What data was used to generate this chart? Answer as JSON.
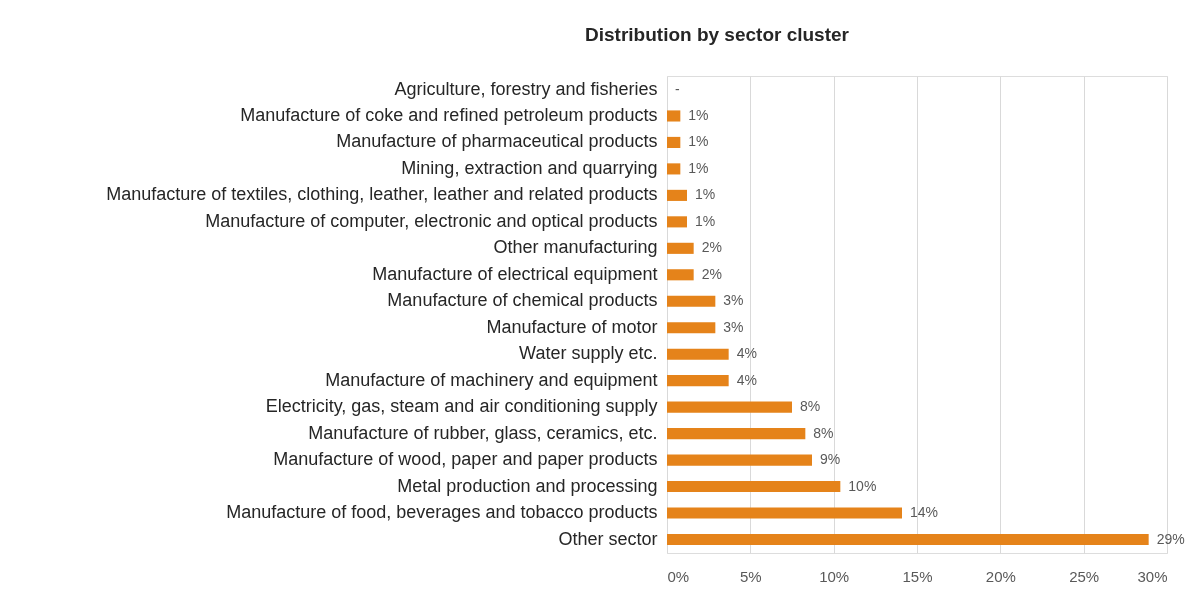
{
  "chart_data": {
    "type": "bar",
    "orientation": "horizontal",
    "title": "Distribution by sector cluster",
    "categories": [
      "Agriculture, forestry and fisheries",
      "Manufacture of coke and refined petroleum products",
      "Manufacture of pharmaceutical products",
      "Mining, extraction and quarrying",
      "Manufacture of textiles, clothing, leather, leather and related products",
      "Manufacture of computer, electronic and optical products",
      "Other manufacturing",
      "Manufacture of electrical equipment",
      "Manufacture of chemical products",
      "Manufacture of motor",
      "Water supply etc.",
      "Manufacture of machinery and equipment",
      "Electricity, gas, steam and air conditioning supply",
      "Manufacture of rubber, glass, ceramics, etc.",
      "Manufacture of wood, paper and paper products",
      "Metal production and processing",
      "Manufacture of food, beverages and tobacco products",
      "Other sector"
    ],
    "values": [
      0,
      0.8,
      0.8,
      0.8,
      1.2,
      1.2,
      1.6,
      1.6,
      2.9,
      2.9,
      3.7,
      3.7,
      7.5,
      8.3,
      8.7,
      10.4,
      14.1,
      28.9
    ],
    "value_labels": [
      "-",
      "1%",
      "1%",
      "1%",
      "1%",
      "1%",
      "2%",
      "2%",
      "3%",
      "3%",
      "4%",
      "4%",
      "8%",
      "8%",
      "9%",
      "10%",
      "14%",
      "29%"
    ],
    "color": "#e5831a",
    "xlim": [
      0,
      30
    ],
    "xticks": [
      {
        "value": 0,
        "label": "0%"
      },
      {
        "value": 5,
        "label": "5%"
      },
      {
        "value": 10,
        "label": "10%"
      },
      {
        "value": 15,
        "label": "15%"
      },
      {
        "value": 20,
        "label": "20%"
      },
      {
        "value": 25,
        "label": "25%"
      },
      {
        "value": 30,
        "label": "30%"
      }
    ],
    "grid": "x"
  }
}
